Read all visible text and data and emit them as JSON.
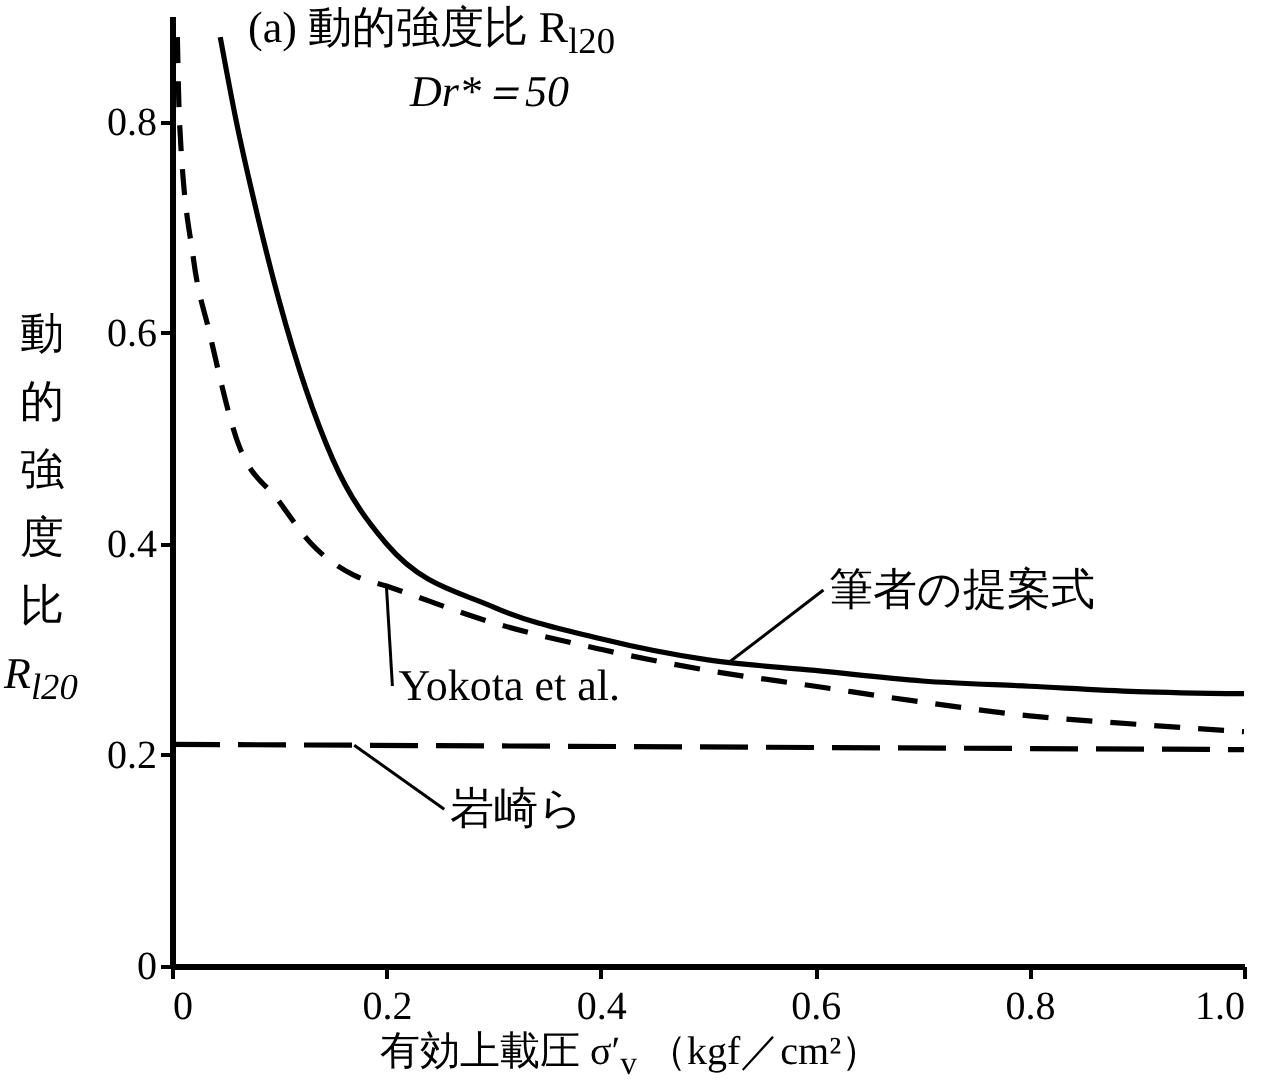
{
  "chart_data": {
    "type": "line",
    "title": "(a) 動的強度比 R$_{l20}$",
    "subtitle": "Dr*＝50",
    "xlabel": "有効上載圧 σ′$_{v}$ （kgf／cm²）",
    "ylabel": "動的強度比 R$_{l20}$",
    "xlim": [
      0,
      1
    ],
    "ylim": [
      0,
      0.9
    ],
    "xticks": [
      0,
      0.2,
      0.4,
      0.6,
      0.8,
      {
        "value": 1,
        "label": "1.0"
      }
    ],
    "yticks": [
      0,
      0.2,
      0.4,
      0.6,
      0.8
    ],
    "grid": false,
    "legend": false,
    "series": [
      {
        "name": "筆者の提案式",
        "color": "#000000",
        "line_style": "solid",
        "x": [
          0.045,
          0.06,
          0.08,
          0.1,
          0.15,
          0.2,
          0.3,
          0.4,
          0.5,
          0.6,
          0.7,
          0.8,
          0.9,
          1.0
        ],
        "values": [
          0.88,
          0.8,
          0.71,
          0.63,
          0.48,
          0.4,
          0.34,
          0.31,
          0.29,
          0.28,
          0.27,
          0.265,
          0.26,
          0.258
        ]
      },
      {
        "name": "Yokota et al.",
        "color": "#000000",
        "line_style": "dashed",
        "x": [
          0.005,
          0.007,
          0.02,
          0.035,
          0.06,
          0.1,
          0.13,
          0.17,
          0.2,
          0.3,
          0.4,
          0.5,
          0.6,
          0.7,
          0.8,
          0.9,
          1.0
        ],
        "values": [
          0.88,
          0.8,
          0.67,
          0.6,
          0.5,
          0.44,
          0.4,
          0.37,
          0.36,
          0.325,
          0.3,
          0.28,
          0.265,
          0.25,
          0.237,
          0.229,
          0.222
        ]
      },
      {
        "name": "岩崎ら",
        "color": "#000000",
        "line_style": "dashed",
        "x": [
          0,
          1
        ],
        "values": [
          0.21,
          0.205
        ]
      }
    ]
  }
}
